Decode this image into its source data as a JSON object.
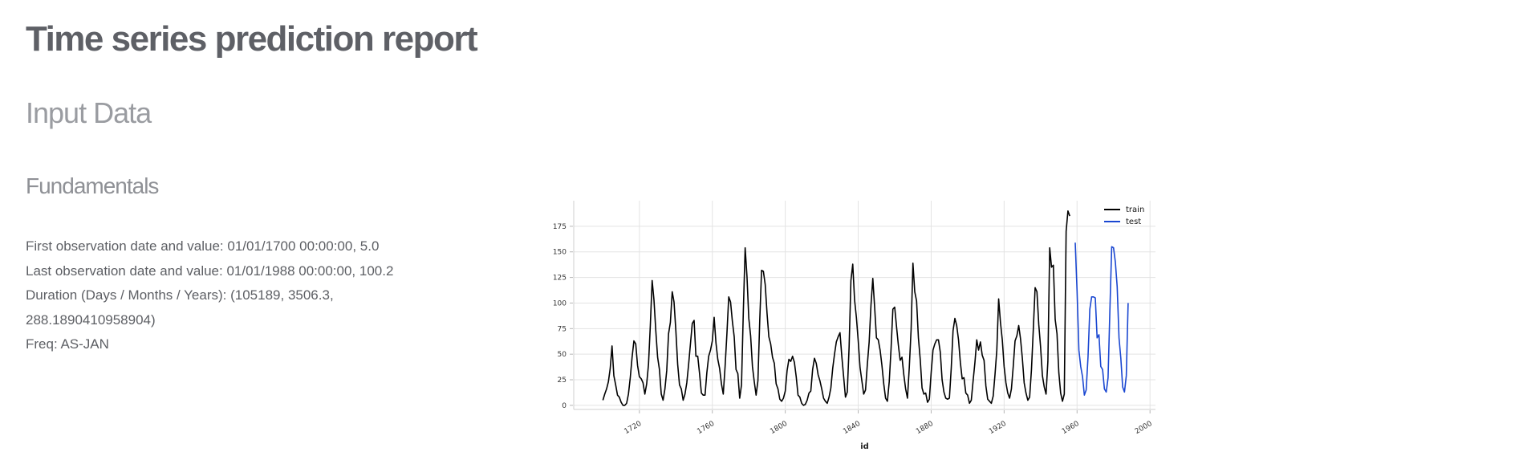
{
  "report": {
    "title": "Time series prediction report",
    "section": "Input Data",
    "subsection": "Fundamentals"
  },
  "facts": [
    "First observation date and value: 01/01/1700 00:00:00, 5.0",
    "Last observation date and value: 01/01/1988 00:00:00, 100.2",
    "Duration (Days / Months / Years): (105189, 3506.3,",
    "288.1890410958904)",
    "Freq: AS-JAN"
  ],
  "chart_data": {
    "type": "line",
    "title": "",
    "xlabel": "id",
    "ylabel": "",
    "xlim": [
      1684,
      2003
    ],
    "ylim": [
      -4,
      200
    ],
    "xticks": [
      1720,
      1760,
      1800,
      1840,
      1880,
      1920,
      1960,
      2000
    ],
    "yticks": [
      0,
      25,
      50,
      75,
      100,
      125,
      150,
      175
    ],
    "grid": true,
    "legend_position": "top-right",
    "series": [
      {
        "name": "train",
        "color": "#000000",
        "x_start": 1700,
        "y": [
          5,
          11,
          16,
          23,
          36,
          58,
          29,
          20,
          10,
          8,
          3,
          0,
          0,
          2,
          11,
          27,
          47,
          63,
          60,
          39,
          28,
          26,
          22,
          11,
          21,
          40,
          78,
          122,
          103,
          73,
          47,
          35,
          11,
          5,
          16,
          34,
          70,
          81,
          111,
          101,
          73,
          40,
          20,
          16,
          5,
          11,
          22,
          40,
          60,
          80,
          83,
          48,
          48,
          31,
          12,
          10,
          10,
          32,
          48,
          54,
          63,
          86,
          61,
          45,
          36,
          21,
          11,
          38,
          70,
          106,
          101,
          82,
          67,
          35,
          31,
          7,
          20,
          92,
          154,
          126,
          85,
          68,
          38,
          23,
          10,
          24,
          83,
          132,
          131,
          118,
          90,
          67,
          60,
          47,
          41,
          21,
          16,
          6,
          4,
          7,
          14,
          34,
          45,
          43,
          48,
          42,
          28,
          10,
          8,
          2,
          0,
          1,
          5,
          12,
          14,
          35,
          46,
          41,
          30,
          24,
          16,
          7,
          4,
          2,
          8,
          17,
          36,
          50,
          62,
          67,
          71,
          48,
          28,
          8,
          13,
          57,
          122,
          138,
          103,
          86,
          63,
          37,
          24,
          11,
          15,
          40,
          62,
          98,
          124,
          96,
          66,
          64,
          54,
          39,
          21,
          7,
          4,
          23,
          55,
          94,
          96,
          77,
          59,
          44,
          47,
          30,
          16,
          7,
          37,
          74,
          139,
          111,
          102,
          66,
          45,
          17,
          11,
          12,
          3,
          6,
          32,
          54,
          60,
          64,
          64,
          52,
          25,
          13,
          7,
          6,
          7,
          36,
          73,
          85,
          78,
          64,
          42,
          26,
          27,
          12,
          10,
          2,
          5,
          24,
          42,
          64,
          54,
          62,
          49,
          44,
          19,
          6,
          4,
          2,
          9,
          30,
          54,
          104,
          81,
          64,
          38,
          22,
          12,
          7,
          16,
          38,
          63,
          68,
          78,
          65,
          46,
          22,
          12,
          5,
          8,
          35,
          74,
          115,
          111,
          79,
          57,
          29,
          18,
          11,
          43,
          154,
          135,
          137,
          84,
          70,
          32,
          12,
          4,
          11,
          170,
          190,
          185
        ]
      },
      {
        "name": "test",
        "color": "#1a47d1",
        "x_start": 1959,
        "y": [
          159,
          112,
          54,
          38,
          28,
          10,
          15,
          47,
          94,
          106,
          106,
          105,
          66,
          69,
          38,
          35,
          16,
          13,
          27,
          93,
          155,
          154,
          140,
          116,
          66,
          46,
          18,
          13,
          29,
          100
        ]
      }
    ]
  }
}
